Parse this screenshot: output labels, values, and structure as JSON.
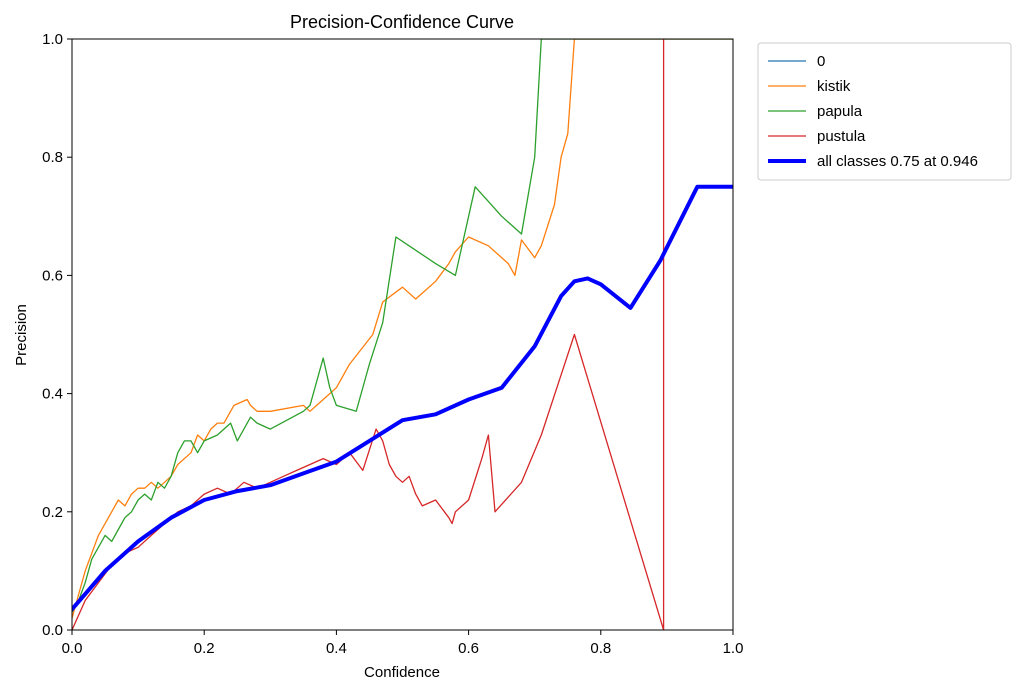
{
  "chart_data": {
    "type": "line",
    "title": "Precision-Confidence Curve",
    "xlabel": "Confidence",
    "ylabel": "Precision",
    "xlim": [
      0,
      1
    ],
    "ylim": [
      0,
      1
    ],
    "xticks": [
      "0.0",
      "0.2",
      "0.4",
      "0.6",
      "0.8",
      "1.0"
    ],
    "yticks": [
      "0.0",
      "0.2",
      "0.4",
      "0.6",
      "0.8",
      "1.0"
    ],
    "grid": false,
    "legend_position": "outside-top-right",
    "series": [
      {
        "name": "0",
        "color": "#1f77b4",
        "width": 1.3,
        "x": [],
        "y": []
      },
      {
        "name": "kistik",
        "color": "#ff7f0e",
        "width": 1.3,
        "x": [
          0.0,
          0.01,
          0.02,
          0.03,
          0.04,
          0.05,
          0.06,
          0.07,
          0.08,
          0.09,
          0.1,
          0.11,
          0.12,
          0.13,
          0.14,
          0.15,
          0.16,
          0.18,
          0.19,
          0.2,
          0.21,
          0.22,
          0.23,
          0.245,
          0.265,
          0.27,
          0.28,
          0.3,
          0.35,
          0.36,
          0.38,
          0.4,
          0.42,
          0.455,
          0.47,
          0.5,
          0.52,
          0.55,
          0.57,
          0.58,
          0.6,
          0.63,
          0.66,
          0.67,
          0.68,
          0.7,
          0.71,
          0.73,
          0.74,
          0.75,
          0.76,
          1.0
        ],
        "y": [
          0.02,
          0.06,
          0.1,
          0.13,
          0.16,
          0.18,
          0.2,
          0.22,
          0.21,
          0.23,
          0.24,
          0.24,
          0.25,
          0.24,
          0.25,
          0.26,
          0.28,
          0.3,
          0.33,
          0.32,
          0.34,
          0.35,
          0.35,
          0.38,
          0.39,
          0.38,
          0.37,
          0.37,
          0.38,
          0.37,
          0.39,
          0.41,
          0.45,
          0.5,
          0.555,
          0.58,
          0.56,
          0.59,
          0.62,
          0.64,
          0.665,
          0.65,
          0.62,
          0.6,
          0.66,
          0.63,
          0.65,
          0.72,
          0.8,
          0.84,
          1.0,
          1.0
        ]
      },
      {
        "name": "papula",
        "color": "#2ca02c",
        "width": 1.3,
        "x": [
          0.0,
          0.01,
          0.02,
          0.03,
          0.04,
          0.05,
          0.06,
          0.07,
          0.08,
          0.09,
          0.1,
          0.11,
          0.12,
          0.13,
          0.14,
          0.15,
          0.16,
          0.17,
          0.18,
          0.19,
          0.2,
          0.22,
          0.24,
          0.25,
          0.27,
          0.28,
          0.3,
          0.35,
          0.36,
          0.38,
          0.39,
          0.4,
          0.43,
          0.45,
          0.47,
          0.49,
          0.51,
          0.55,
          0.58,
          0.61,
          0.65,
          0.68,
          0.7,
          0.71,
          1.0
        ],
        "y": [
          0.03,
          0.05,
          0.08,
          0.12,
          0.14,
          0.16,
          0.15,
          0.17,
          0.19,
          0.2,
          0.22,
          0.23,
          0.22,
          0.25,
          0.24,
          0.26,
          0.3,
          0.32,
          0.32,
          0.3,
          0.32,
          0.33,
          0.35,
          0.32,
          0.36,
          0.35,
          0.34,
          0.37,
          0.38,
          0.46,
          0.41,
          0.38,
          0.37,
          0.45,
          0.52,
          0.665,
          0.65,
          0.62,
          0.6,
          0.75,
          0.7,
          0.67,
          0.8,
          1.0,
          1.0
        ]
      },
      {
        "name": "pustula",
        "color": "#d62728",
        "width": 1.3,
        "x": [
          0.0,
          0.02,
          0.04,
          0.06,
          0.08,
          0.1,
          0.12,
          0.14,
          0.16,
          0.18,
          0.2,
          0.22,
          0.24,
          0.26,
          0.28,
          0.3,
          0.32,
          0.34,
          0.36,
          0.38,
          0.4,
          0.42,
          0.44,
          0.46,
          0.47,
          0.48,
          0.49,
          0.5,
          0.51,
          0.52,
          0.53,
          0.55,
          0.57,
          0.575,
          0.58,
          0.6,
          0.62,
          0.63,
          0.64,
          0.68,
          0.71,
          0.76,
          0.895,
          0.895
        ],
        "y": [
          0.0,
          0.05,
          0.08,
          0.11,
          0.13,
          0.14,
          0.16,
          0.18,
          0.2,
          0.21,
          0.23,
          0.24,
          0.23,
          0.25,
          0.24,
          0.25,
          0.26,
          0.27,
          0.28,
          0.29,
          0.28,
          0.3,
          0.27,
          0.34,
          0.32,
          0.28,
          0.26,
          0.25,
          0.26,
          0.23,
          0.21,
          0.22,
          0.19,
          0.18,
          0.2,
          0.22,
          0.29,
          0.33,
          0.2,
          0.25,
          0.33,
          0.5,
          0.0,
          1.0
        ]
      },
      {
        "name": "all classes 0.75 at 0.946",
        "color": "#0000ff",
        "width": 4,
        "x": [
          0.0,
          0.05,
          0.1,
          0.15,
          0.2,
          0.25,
          0.3,
          0.35,
          0.4,
          0.45,
          0.5,
          0.55,
          0.6,
          0.65,
          0.7,
          0.74,
          0.76,
          0.78,
          0.8,
          0.845,
          0.89,
          0.946,
          1.0
        ],
        "y": [
          0.035,
          0.1,
          0.15,
          0.19,
          0.22,
          0.235,
          0.245,
          0.265,
          0.285,
          0.32,
          0.355,
          0.365,
          0.39,
          0.41,
          0.48,
          0.565,
          0.59,
          0.595,
          0.585,
          0.545,
          0.625,
          0.75,
          0.75
        ]
      }
    ]
  }
}
